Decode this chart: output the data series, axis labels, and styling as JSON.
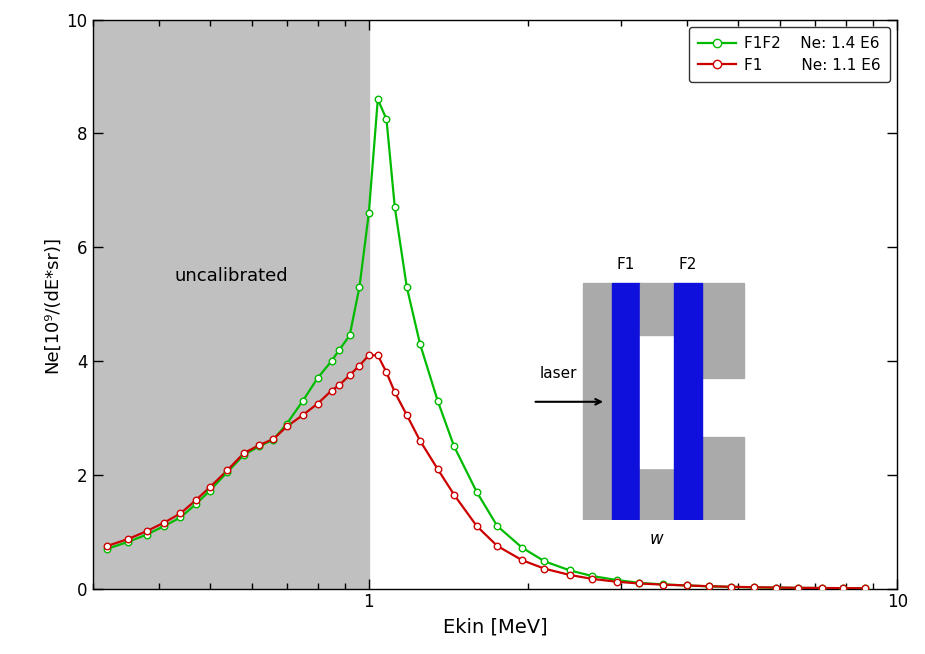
{
  "title": "",
  "xlabel": "Ekin [MeV]",
  "ylabel": "Ne[10⁹/(dE*sr)]",
  "xlim_log": [
    0.3,
    10
  ],
  "ylim": [
    0,
    10
  ],
  "uncalibrated_xmax": 1.0,
  "legend_labels": [
    "F1F2    Ne: 1.4 E6",
    "F1        Ne: 1.1 E6"
  ],
  "line_colors": [
    "#00bb00",
    "#cc0000"
  ],
  "marker_color": "white",
  "background_gray": "#c0c0c0",
  "green_line": {
    "x": [
      0.32,
      0.35,
      0.38,
      0.41,
      0.44,
      0.47,
      0.5,
      0.54,
      0.58,
      0.62,
      0.66,
      0.7,
      0.75,
      0.8,
      0.85,
      0.88,
      0.92,
      0.96,
      1.0,
      1.04,
      1.08,
      1.12,
      1.18,
      1.25,
      1.35,
      1.45,
      1.6,
      1.75,
      1.95,
      2.15,
      2.4,
      2.65,
      2.95,
      3.25,
      3.6,
      4.0,
      4.4,
      4.85,
      5.35,
      5.9,
      6.5,
      7.2,
      7.9,
      8.7
    ],
    "y": [
      0.7,
      0.82,
      0.95,
      1.1,
      1.25,
      1.48,
      1.72,
      2.05,
      2.35,
      2.5,
      2.62,
      2.9,
      3.3,
      3.7,
      4.0,
      4.2,
      4.45,
      5.3,
      6.6,
      8.6,
      8.25,
      6.7,
      5.3,
      4.3,
      3.3,
      2.5,
      1.7,
      1.1,
      0.72,
      0.48,
      0.32,
      0.22,
      0.15,
      0.1,
      0.075,
      0.055,
      0.04,
      0.03,
      0.022,
      0.016,
      0.012,
      0.009,
      0.007,
      0.005
    ]
  },
  "red_line": {
    "x": [
      0.32,
      0.35,
      0.38,
      0.41,
      0.44,
      0.47,
      0.5,
      0.54,
      0.58,
      0.62,
      0.66,
      0.7,
      0.75,
      0.8,
      0.85,
      0.88,
      0.92,
      0.96,
      1.0,
      1.04,
      1.08,
      1.12,
      1.18,
      1.25,
      1.35,
      1.45,
      1.6,
      1.75,
      1.95,
      2.15,
      2.4,
      2.65,
      2.95,
      3.25,
      3.6,
      4.0,
      4.4,
      4.85,
      5.35,
      5.9,
      6.5,
      7.2,
      7.9,
      8.7
    ],
    "y": [
      0.75,
      0.87,
      1.01,
      1.16,
      1.32,
      1.55,
      1.78,
      2.08,
      2.38,
      2.52,
      2.63,
      2.85,
      3.05,
      3.25,
      3.48,
      3.58,
      3.75,
      3.92,
      4.1,
      4.1,
      3.8,
      3.45,
      3.05,
      2.6,
      2.1,
      1.65,
      1.1,
      0.75,
      0.5,
      0.35,
      0.24,
      0.17,
      0.12,
      0.09,
      0.07,
      0.055,
      0.042,
      0.032,
      0.024,
      0.018,
      0.014,
      0.011,
      0.008,
      0.006
    ]
  },
  "inset": {
    "gray": "#aaaaaa",
    "blue": "#1010dd",
    "white": "white"
  }
}
